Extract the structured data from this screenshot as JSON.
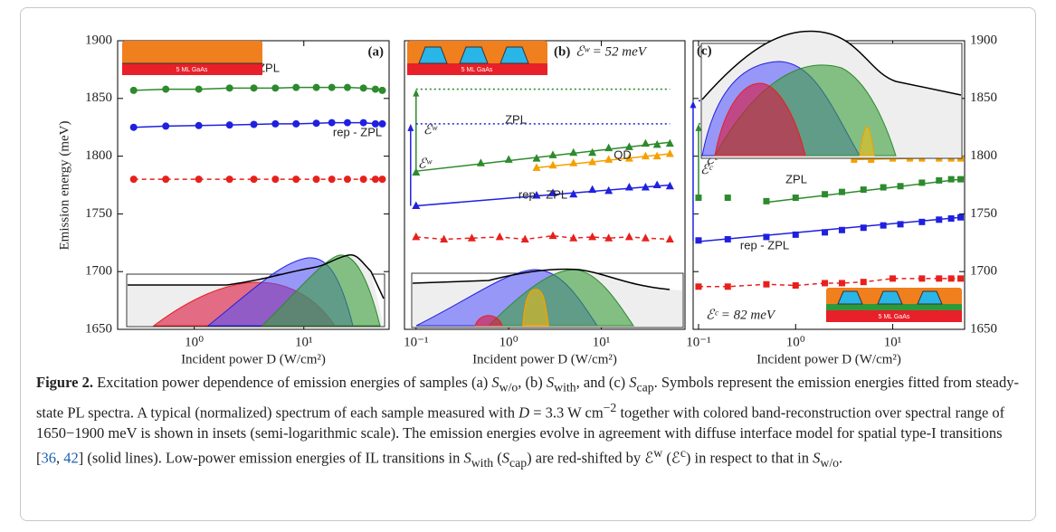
{
  "chart_data": [
    {
      "type": "scatter",
      "label": "(a)",
      "inset_label": "5 ML GaAs",
      "xlabel": "Incident power D (W/cm²)",
      "ylabel": "Emission energy (meV)",
      "xlog": true,
      "xlim": [
        0.2,
        60
      ],
      "xticks": [
        {
          "value": 1,
          "label": "10⁰"
        },
        {
          "value": 10,
          "label": "10¹"
        }
      ],
      "ylim": [
        1650,
        1900
      ],
      "yticks": [
        1650,
        1700,
        1750,
        1800,
        1850,
        1900
      ],
      "yaxis": "left",
      "series": [
        {
          "name": "ZPL",
          "color": "#2d8a2d",
          "marker": "circle",
          "line": "solid",
          "x": [
            0.28,
            0.55,
            1.1,
            2.1,
            3.5,
            5.5,
            8.5,
            13,
            18,
            25,
            35,
            45,
            52
          ],
          "values": [
            1857,
            1858,
            1858,
            1859,
            1859,
            1859,
            1859.5,
            1859.5,
            1859.5,
            1859.5,
            1859,
            1858,
            1857
          ]
        },
        {
          "name": "rep - ZPL",
          "color": "#2020e0",
          "marker": "circle",
          "line": "solid",
          "x": [
            0.28,
            0.55,
            1.1,
            2.1,
            3.5,
            5.5,
            8.5,
            13,
            18,
            25,
            35,
            45,
            52
          ],
          "values": [
            1825,
            1826,
            1826.5,
            1827,
            1827.5,
            1828,
            1828,
            1828.5,
            1829,
            1829,
            1829,
            1828,
            1828
          ]
        },
        {
          "color": "#e8201c",
          "marker": "circle",
          "line": "dashed",
          "x": [
            0.28,
            0.55,
            1.1,
            2.1,
            3.5,
            5.5,
            8.5,
            13,
            18,
            25,
            35,
            45,
            52
          ],
          "values": [
            1780,
            1780,
            1780,
            1780,
            1780,
            1780,
            1780,
            1780,
            1780,
            1780,
            1780,
            1780,
            1780
          ]
        }
      ]
    },
    {
      "type": "scatter",
      "label": "(b)",
      "annotation": "ℰʷ = 52 meV",
      "inset_label": "5 ML GaAs",
      "xlabel": "Incident power D (W/cm²)",
      "xlog": true,
      "xlim": [
        0.075,
        80
      ],
      "xticks": [
        {
          "value": 0.1,
          "label": "10⁻¹"
        },
        {
          "value": 1,
          "label": "10⁰"
        },
        {
          "value": 10,
          "label": "10¹"
        }
      ],
      "ylim": [
        1650,
        1900
      ],
      "series": [
        {
          "name": "ZPL",
          "color": "#2d8a2d",
          "marker": "triangle",
          "x": [
            0.1,
            0.5,
            1,
            2,
            3,
            5,
            8,
            12,
            20,
            30,
            40,
            55
          ],
          "values": [
            1786,
            1794,
            1797,
            1798,
            1801,
            1803,
            1803,
            1807,
            1808,
            1811,
            1810,
            1811
          ],
          "fit_x": [
            0.1,
            55
          ],
          "fit_values": [
            1787,
            1812
          ]
        },
        {
          "name": "rep - ZPL",
          "color": "#2020e0",
          "marker": "triangle",
          "x": [
            0.1,
            2,
            3,
            5,
            8,
            12,
            20,
            30,
            40,
            55
          ],
          "values": [
            1757,
            1766,
            1768,
            1767,
            1771,
            1770,
            1773,
            1773,
            1775,
            1774
          ],
          "fit_x": [
            0.1,
            55
          ],
          "fit_values": [
            1757,
            1775
          ]
        },
        {
          "name": "QD",
          "color": "#f5a000",
          "marker": "triangle",
          "x": [
            2,
            3,
            5,
            8,
            12,
            20,
            30,
            40,
            55
          ],
          "values": [
            1790,
            1792,
            1794,
            1795,
            1797,
            1798,
            1800,
            1800,
            1802
          ],
          "fit_x": [
            2,
            55
          ],
          "fit_values": [
            1790,
            1802
          ]
        },
        {
          "color": "#e8201c",
          "marker": "triangle",
          "line": "dashed",
          "x": [
            0.1,
            0.2,
            0.4,
            0.8,
            1.5,
            3,
            5,
            8,
            12,
            20,
            30,
            55
          ],
          "values": [
            1730,
            1728,
            1729,
            1730,
            1728,
            1731,
            1729,
            1730,
            1729,
            1730,
            1729,
            1728
          ]
        }
      ],
      "references": [
        {
          "label": "ℰʷ",
          "color": "#2d8a2d",
          "value": 1858,
          "x": [
            0.1,
            55
          ]
        },
        {
          "label": "ℰʷ",
          "color": "#2020e0",
          "value": 1828,
          "x": [
            0.1,
            55
          ]
        }
      ]
    },
    {
      "type": "scatter",
      "label": "(c)",
      "annotation": "ℰᶜ = 82 meV",
      "inset_label": "5 ML GaAs",
      "xlabel": "Incident power D (W/cm²)",
      "xlog": true,
      "xlim": [
        0.088,
        55
      ],
      "xticks": [
        {
          "value": 0.1,
          "label": "10⁻¹"
        },
        {
          "value": 1,
          "label": "10⁰"
        },
        {
          "value": 10,
          "label": "10¹"
        }
      ],
      "ylim": [
        1650,
        1900
      ],
      "yticks": [
        1650,
        1700,
        1750,
        1800,
        1850,
        1900
      ],
      "yaxis": "right",
      "series": [
        {
          "name": "ZPL",
          "color": "#2d8a2d",
          "marker": "square",
          "x": [
            0.1,
            0.2,
            0.5,
            1,
            2,
            3,
            5,
            8,
            12,
            20,
            30,
            40,
            50
          ],
          "values": [
            1764,
            1764,
            1761,
            1764,
            1767,
            1769,
            1771,
            1773,
            1774,
            1777,
            1779,
            1780,
            1780
          ],
          "fit_x": [
            0.5,
            50
          ],
          "fit_values": [
            1760,
            1780
          ]
        },
        {
          "name": "rep - ZPL",
          "color": "#2020e0",
          "marker": "square",
          "x": [
            0.1,
            0.2,
            0.5,
            1,
            2,
            3,
            5,
            8,
            12,
            20,
            30,
            40,
            50
          ],
          "values": [
            1727,
            1728,
            1730,
            1732,
            1734,
            1736,
            1738,
            1740,
            1741,
            1743,
            1745,
            1746,
            1747
          ],
          "fit_x": [
            0.1,
            50
          ],
          "fit_values": [
            1726,
            1747
          ]
        },
        {
          "name": "QD",
          "color": "#f5a000",
          "marker": "square",
          "x": [
            4,
            6,
            10,
            15,
            20,
            30,
            40,
            50
          ],
          "values": [
            1797,
            1797,
            1798,
            1798,
            1798,
            1798,
            1798,
            1798
          ],
          "fit_x": [
            4,
            50
          ],
          "fit_values": [
            1797,
            1799
          ]
        },
        {
          "color": "#e8201c",
          "marker": "square",
          "line": "dashed",
          "x": [
            0.1,
            0.2,
            0.5,
            1,
            2,
            3,
            5,
            10,
            20,
            30,
            40,
            50
          ],
          "values": [
            1687,
            1687,
            1689,
            1688,
            1690,
            1690,
            1691,
            1694,
            1694,
            1694,
            1694,
            1694
          ]
        }
      ],
      "references": [
        {
          "label": "ℰᶜ",
          "color": "#2d8a2d",
          "value": 1828,
          "x": [
            0.1,
            0.9
          ]
        },
        {
          "label": "ℰᶜ",
          "color": "#2020e0",
          "value": 1848,
          "x": [
            0.1,
            0.3
          ]
        }
      ]
    }
  ],
  "caption": [
    "Figure 2.",
    " Excitation power dependence of emission energies of samples (a) ",
    "S",
    "w/o",
    ", (b) ",
    "S",
    "with",
    ", and (c) ",
    "S",
    "cap",
    ". Symbols represent the emission energies fitted from steady-state PL spectra. A typical (normalized) spectrum of each sample measured with ",
    "D",
    " = 3.3 W cm",
    "−2",
    " together with colored band-reconstruction over spectral range of 1650−1900 meV is shown in insets (semi-logarithmic scale). The emission energies evolve in agreement with diffuse interface model for spatial type-I transitions [",
    "36",
    ", ",
    "42",
    "] (solid lines). Low-power emission energies of IL transitions in ",
    "S",
    "with",
    " (",
    "S",
    "cap",
    ") are red-shifted by ℰ",
    "w",
    " (ℰ",
    "c",
    ") in respect to that in ",
    "S",
    "w/o",
    "."
  ]
}
